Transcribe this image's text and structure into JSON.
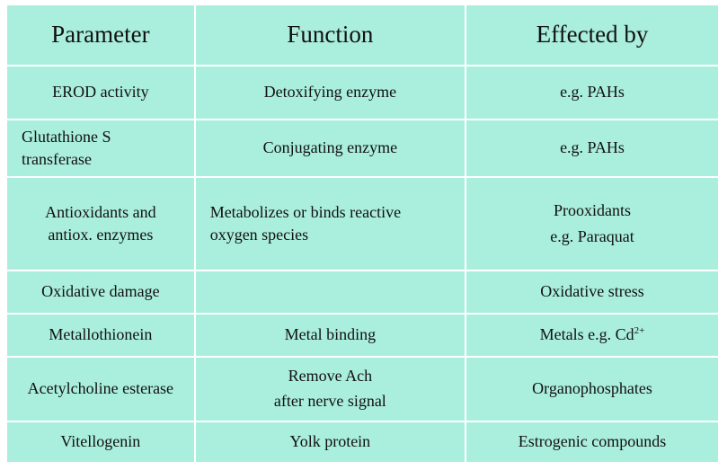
{
  "headers": [
    "Parameter",
    "Function",
    "Effected by"
  ],
  "rows": [
    {
      "parameter": [
        "EROD activity"
      ],
      "function": [
        "Detoxifying enzyme"
      ],
      "effected_by": [
        "e.g. PAHs"
      ]
    },
    {
      "parameter": [
        "Glutathione S",
        "transferase"
      ],
      "function": [
        "Conjugating enzyme"
      ],
      "effected_by": [
        "e.g. PAHs"
      ]
    },
    {
      "parameter": [
        "Antioxidants and",
        "antiox. enzymes"
      ],
      "function": [
        "Metabolizes or binds reactive",
        "oxygen species"
      ],
      "effected_by": [
        "Prooxidants",
        "e.g. Paraquat"
      ]
    },
    {
      "parameter": [
        "Oxidative damage"
      ],
      "function": [
        ""
      ],
      "effected_by": [
        "Oxidative stress"
      ]
    },
    {
      "parameter": [
        "Metallothionein"
      ],
      "function": [
        "Metal binding"
      ],
      "effected_by": [
        "Metals e.g. Cd"
      ],
      "effected_by_sup": "2+"
    },
    {
      "parameter": [
        "Acetylcholine esterase"
      ],
      "function": [
        "Remove Ach",
        "after nerve signal"
      ],
      "effected_by": [
        "Organophosphates"
      ]
    },
    {
      "parameter": [
        "Vitellogenin"
      ],
      "function": [
        "Yolk protein"
      ],
      "effected_by": [
        "Estrogenic compounds"
      ]
    }
  ]
}
